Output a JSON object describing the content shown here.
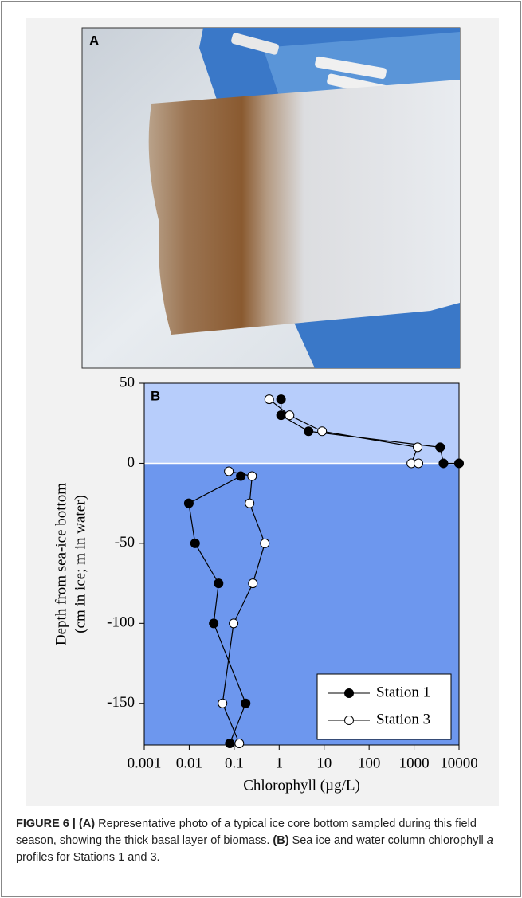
{
  "panel_a": {
    "label": "A"
  },
  "chart_data": {
    "type": "scatter-line",
    "panel_label": "B",
    "x_label": "Chlorophyll (µg/L)",
    "y_label": [
      "Depth from sea-ice bottom",
      "(cm in ice; m in water)"
    ],
    "x_log": true,
    "xlim": [
      0.001,
      10000
    ],
    "xticks": [
      0.001,
      0.01,
      0.1,
      1,
      10,
      100,
      1000,
      10000
    ],
    "ylim": [
      -176,
      50
    ],
    "yticks": [
      50,
      0,
      -50,
      -100,
      -150
    ],
    "regions": [
      {
        "y0": 0,
        "y1": 50,
        "color": "#b7cdfb"
      },
      {
        "y0": -176,
        "y1": 0,
        "color": "#6d97ee"
      }
    ],
    "legend_position": "lower right",
    "series": [
      {
        "name": "Station 1",
        "marker_fill": "#000000",
        "color": "#000000",
        "x": [
          1.1,
          1.1,
          4.5,
          3800,
          4500,
          10000,
          null,
          0.14,
          0.0098,
          0.0135,
          0.045,
          0.035,
          0.18,
          0.08
        ],
        "y": [
          40,
          30,
          20,
          10,
          0,
          0,
          null,
          -8,
          -25,
          -50,
          -75,
          -100,
          -150,
          -175
        ]
      },
      {
        "name": "Station 3",
        "marker_fill": "#ffffff",
        "color": "#000000",
        "x": [
          0.6,
          1.7,
          9,
          1200,
          870,
          1250,
          null,
          0.076,
          0.25,
          0.22,
          0.48,
          0.26,
          0.097,
          0.055,
          0.13
        ],
        "y": [
          40,
          30,
          20,
          10,
          0,
          0,
          null,
          -5,
          -8,
          -25,
          -50,
          -75,
          -100,
          -150,
          -175
        ]
      }
    ]
  },
  "caption": [
    "FIGURE 6 | (A)",
    " Representative photo of a typical ice core bottom sampled during this field season, showing the thick basal layer of biomass. ",
    "(B)",
    " Sea ice and water column chlorophyll ",
    "a",
    " profiles for Stations 1 and 3."
  ]
}
